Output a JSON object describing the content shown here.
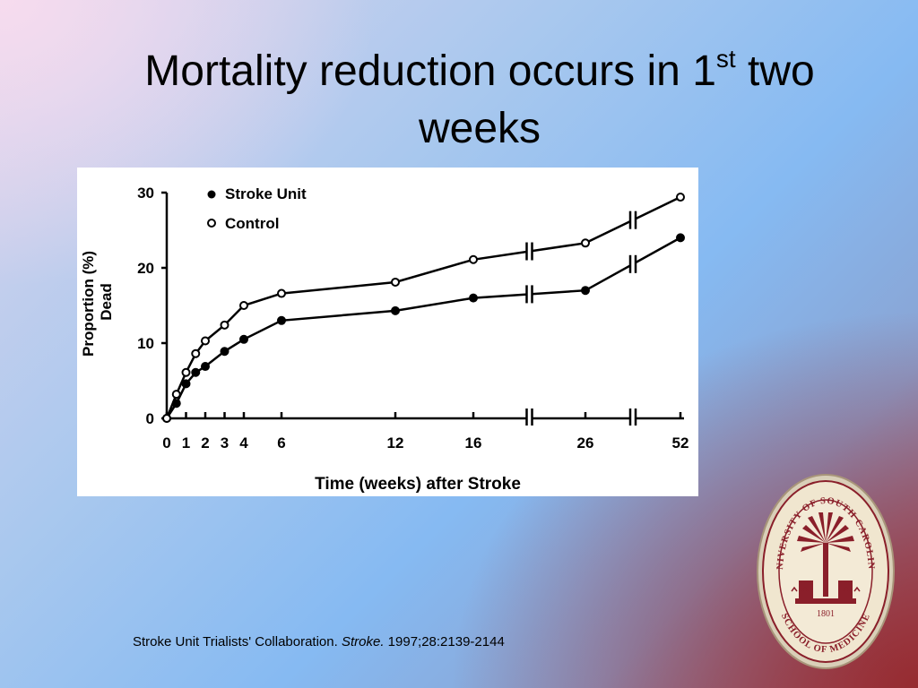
{
  "slide": {
    "title_main": "Mortality reduction occurs in 1",
    "title_sup": "st",
    "title_rest": " two weeks"
  },
  "citation": {
    "authors": "Stroke Unit Trialists' Collaboration.",
    "journal": "Stroke.",
    "details": "1997;28:2139-2144"
  },
  "seal": {
    "top_text": "UNIVERSITY OF SOUTH CAROLINA",
    "bottom_text": "SCHOOL OF MEDICINE",
    "year": "1801",
    "colors": {
      "ring": "#8a1f2a",
      "fill": "#f0e6cf",
      "rim": "#d9cfb8"
    }
  },
  "chart_data": {
    "type": "line",
    "xlabel": "Time (weeks) after Stroke",
    "ylabel_line1": "Proportion (%)",
    "ylabel_line2": "Dead",
    "ylim": [
      0,
      30
    ],
    "yticks": [
      0,
      10,
      20,
      30
    ],
    "x_tick_labels": [
      "0",
      "1",
      "2",
      "3",
      "4",
      "6",
      "12",
      "16",
      "26",
      "52"
    ],
    "x_scale": "non-linear with axis breaks between 16 and 26 and between 26 and 52",
    "legend_position": "top-left",
    "series": [
      {
        "name": "Stroke Unit",
        "marker": "filled-circle",
        "points": [
          [
            0,
            0
          ],
          [
            0.5,
            2
          ],
          [
            1,
            4.6
          ],
          [
            1.5,
            6.1
          ],
          [
            2,
            6.9
          ],
          [
            3,
            8.9
          ],
          [
            4,
            10.5
          ],
          [
            6,
            13.0
          ],
          [
            12,
            14.3
          ],
          [
            16,
            16.0
          ],
          [
            26,
            17.0
          ],
          [
            52,
            24.0
          ]
        ]
      },
      {
        "name": "Control",
        "marker": "open-circle",
        "points": [
          [
            0,
            0
          ],
          [
            0.5,
            3.2
          ],
          [
            1,
            6.1
          ],
          [
            1.5,
            8.6
          ],
          [
            2,
            10.3
          ],
          [
            3,
            12.4
          ],
          [
            4,
            15.0
          ],
          [
            6,
            16.6
          ],
          [
            12,
            18.1
          ],
          [
            16,
            21.1
          ],
          [
            26,
            23.3
          ],
          [
            52,
            29.4
          ]
        ]
      }
    ],
    "colors": {
      "line": "#000000",
      "background": "#ffffff"
    }
  }
}
